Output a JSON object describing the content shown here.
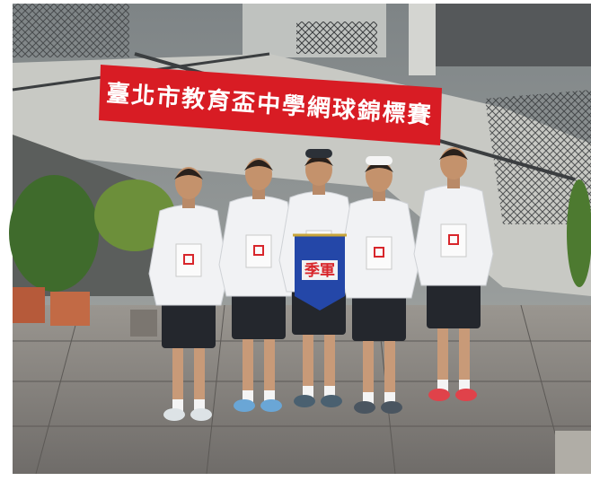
{
  "banner": {
    "text": "臺北市教育盃中學網球錦標賽"
  },
  "pennant": {
    "text": "季軍"
  }
}
